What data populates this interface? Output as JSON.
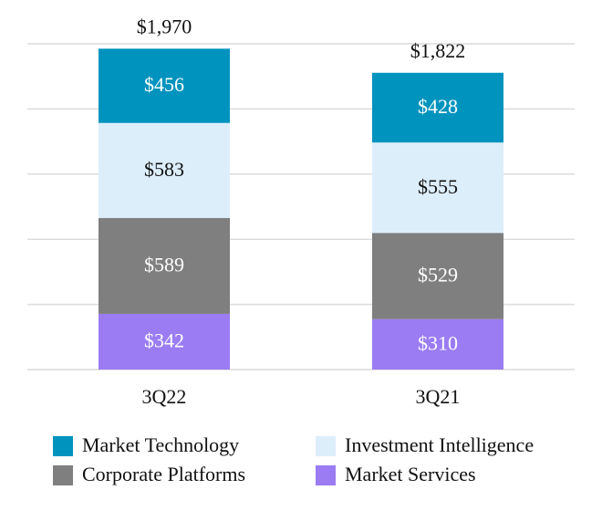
{
  "chart_data": {
    "type": "stacked-bar",
    "categories": [
      "3Q22",
      "3Q21"
    ],
    "series": [
      {
        "name": "Market Technology",
        "color": "#0093be",
        "values": [
          456,
          428
        ],
        "value_labels": [
          "$456",
          "$428"
        ]
      },
      {
        "name": "Investment Intelligence",
        "color": "#ddeefb",
        "values": [
          583,
          555
        ],
        "value_labels": [
          "$583",
          "$555"
        ]
      },
      {
        "name": "Corporate Platforms",
        "color": "#7f7f7f",
        "values": [
          589,
          529
        ],
        "value_labels": [
          "$589",
          "$529"
        ]
      },
      {
        "name": "Market Services",
        "color": "#9b7cf2",
        "values": [
          342,
          310
        ],
        "value_labels": [
          "$342",
          "$310"
        ]
      }
    ],
    "totals": [
      1970,
      1822
    ],
    "total_labels": [
      "$1,970",
      "$1,822"
    ],
    "ylim": [
      0,
      2000
    ],
    "yticks": [
      0,
      400,
      800,
      1200,
      1600,
      2000
    ],
    "grid": true
  }
}
